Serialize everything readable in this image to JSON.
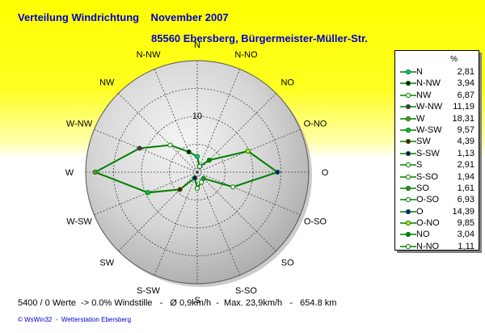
{
  "header": {
    "title": "Verteilung Windrichtung    November 2007",
    "subtitle": "85560 Ebersberg, Bürgermeister-Müller-Str."
  },
  "chart_data": {
    "type": "radar",
    "directions": [
      "N",
      "N-NO",
      "NO",
      "O-NO",
      "O",
      "O-SO",
      "SO",
      "S-SO",
      "S",
      "S-SW",
      "SW",
      "W-SW",
      "W",
      "W-NW",
      "NW",
      "N-NW"
    ],
    "values": [
      2.81,
      1.11,
      3.04,
      9.85,
      14.39,
      6.93,
      1.61,
      1.94,
      2.91,
      1.13,
      4.39,
      9.57,
      18.31,
      11.19,
      6.87,
      3.94
    ],
    "rmax": 20,
    "ring_step": 5,
    "ring_label": "10",
    "line_color": "#008000",
    "point_colors": {
      "N": "#00c0c0",
      "N-NO": "#ffffff",
      "NO": "#008000",
      "O-NO": "#e0e000",
      "O": "#0000cc",
      "O-SO": "#ffffff",
      "SO": "#408040",
      "S-SO": "#ffffff",
      "S": "#ffffff",
      "S-SW": "#000080",
      "SW": "#800000",
      "W-SW": "#00c040",
      "W": "#808040",
      "W-NW": "#800080",
      "NW": "#ffffff",
      "N-NW": "#000000"
    },
    "legend": {
      "unit": "%",
      "entries": [
        {
          "label": "N",
          "value": "2,81"
        },
        {
          "label": "N-NW",
          "value": "3,94"
        },
        {
          "label": "NW",
          "value": "6,87"
        },
        {
          "label": "W-NW",
          "value": "11,19"
        },
        {
          "label": "W",
          "value": "18,31"
        },
        {
          "label": "W-SW",
          "value": "9,57"
        },
        {
          "label": "SW",
          "value": "4,39"
        },
        {
          "label": "S-SW",
          "value": "1,13"
        },
        {
          "label": "S",
          "value": "2,91"
        },
        {
          "label": "S-SO",
          "value": "1,94"
        },
        {
          "label": "SO",
          "value": "1,61"
        },
        {
          "label": "O-SO",
          "value": "6,93"
        },
        {
          "label": "O",
          "value": "14,39"
        },
        {
          "label": "O-NO",
          "value": "9,85"
        },
        {
          "label": "NO",
          "value": "3,04"
        },
        {
          "label": "N-NO",
          "value": "1,11"
        }
      ]
    }
  },
  "footer": {
    "stats": "5400 / 0 Werte  -> 0.0% Windstille   -   Ø 0,9km/h  -  Max. 23,9km/h   -   654.8 km",
    "credit": "© WsWin32  -  Wetterstation Ebersberg"
  }
}
